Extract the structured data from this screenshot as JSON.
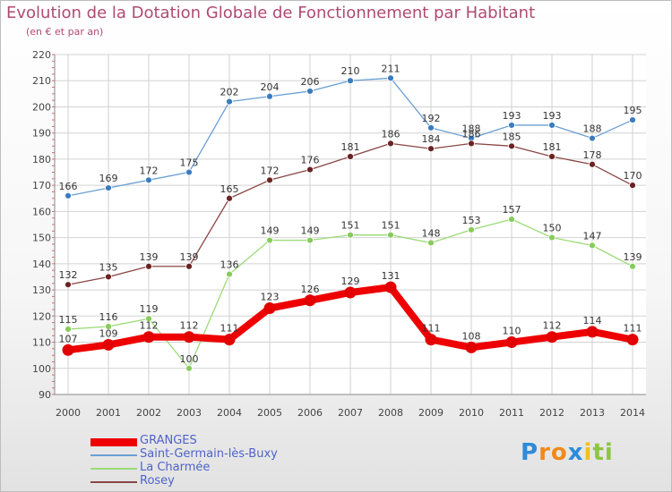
{
  "title": "Evolution de la Dotation Globale de Fonctionnement par Habitant",
  "subtitle": "(en € et par an)",
  "logo": {
    "text": "Proxiti",
    "letters": [
      {
        "ch": "P",
        "color": "#2e8bd9"
      },
      {
        "ch": "r",
        "color": "#f08a1c"
      },
      {
        "ch": "o",
        "color": "#f08a1c"
      },
      {
        "ch": "x",
        "color": "#2e8bd9"
      },
      {
        "ch": "i",
        "color": "#f0c21c"
      },
      {
        "ch": "t",
        "color": "#8cc63f"
      },
      {
        "ch": "i",
        "color": "#8cc63f"
      }
    ]
  },
  "chart_data": {
    "type": "line",
    "x": [
      "2000",
      "2001",
      "2002",
      "2003",
      "2004",
      "2005",
      "2006",
      "2007",
      "2008",
      "2009",
      "2010",
      "2011",
      "2012",
      "2013",
      "2014"
    ],
    "ylim": [
      90,
      220
    ],
    "yticks": [
      90,
      100,
      110,
      120,
      130,
      140,
      150,
      160,
      170,
      180,
      190,
      200,
      210,
      220
    ],
    "grid": true,
    "legend": "bottom-left",
    "series": [
      {
        "name": "Saint-Germain-lès-Buxy",
        "color": "#6a9fd4",
        "marker": "#3a7cc0",
        "width": 1.3,
        "r": 3.5,
        "values": [
          166,
          169,
          172,
          175,
          202,
          204,
          206,
          210,
          211,
          192,
          188,
          193,
          193,
          188,
          195
        ]
      },
      {
        "name": "Rosey",
        "color": "#8a4545",
        "marker": "#6b2222",
        "width": 1.3,
        "r": 3.5,
        "values": [
          132,
          135,
          139,
          139,
          165,
          172,
          176,
          181,
          186,
          184,
          186,
          185,
          181,
          178,
          170
        ]
      },
      {
        "name": "La Charmée",
        "color": "#9bdb76",
        "marker": "#86cc5b",
        "width": 1.3,
        "r": 3.5,
        "values": [
          115,
          116,
          119,
          100,
          136,
          149,
          149,
          151,
          151,
          148,
          153,
          157,
          150,
          147,
          139
        ]
      },
      {
        "name": "GRANGES",
        "color": "#ee0000",
        "marker": "#e20000",
        "width": 8,
        "r": 6.5,
        "values": [
          107,
          109,
          112,
          112,
          111,
          123,
          126,
          129,
          131,
          111,
          108,
          110,
          112,
          114,
          111
        ]
      }
    ],
    "legend_order": [
      "GRANGES",
      "Saint-Germain-lès-Buxy",
      "La Charmée",
      "Rosey"
    ]
  }
}
